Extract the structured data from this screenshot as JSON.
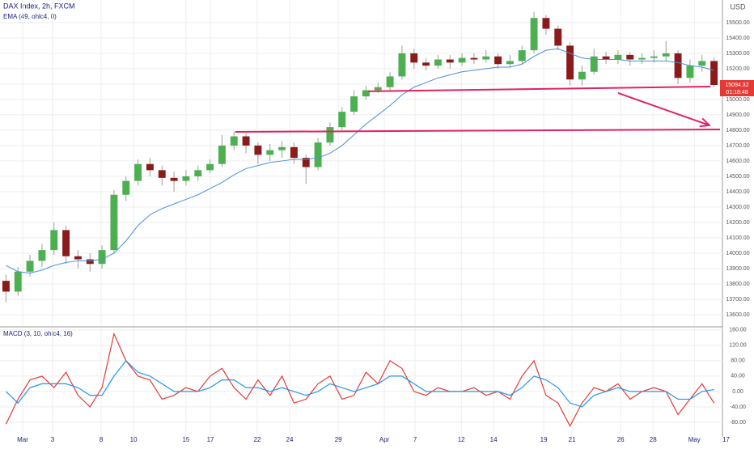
{
  "chart_data": {
    "type": "candlestick",
    "title": "DAX Index, 2h, FXCM",
    "currency": "USD",
    "indicator_label": "EMA (49, ohlc4, 0)",
    "up_color": "#4caf50",
    "down_color": "#8b1a1a",
    "wick_color": "#9e9e9e",
    "ema_color": "#4a90d9",
    "xlim": [
      -0.5,
      59.5
    ],
    "ylim": [
      13526,
      15647
    ],
    "xticks": [
      {
        "value": 1.39,
        "label": "Mar"
      },
      {
        "value": 3.88,
        "label": "3"
      },
      {
        "value": 7.93,
        "label": "8"
      },
      {
        "value": 10.63,
        "label": "10"
      },
      {
        "value": 15.0,
        "label": "15"
      },
      {
        "value": 17.03,
        "label": "17"
      },
      {
        "value": 20.94,
        "label": "22"
      },
      {
        "value": 23.64,
        "label": "24"
      },
      {
        "value": 27.69,
        "label": "29"
      },
      {
        "value": 31.53,
        "label": "Apr"
      },
      {
        "value": 34.09,
        "label": "7"
      },
      {
        "value": 37.94,
        "label": "12"
      },
      {
        "value": 40.63,
        "label": "14"
      },
      {
        "value": 44.81,
        "label": "19"
      },
      {
        "value": 47.17,
        "label": "21"
      },
      {
        "value": 51.22,
        "label": "26"
      },
      {
        "value": 53.92,
        "label": "28"
      },
      {
        "value": 57.36,
        "label": "May"
      },
      {
        "value": 60.0,
        "label": "17"
      }
    ],
    "yticks": [
      {
        "value": 13600,
        "label": "13600.00"
      },
      {
        "value": 13700,
        "label": "13700.00"
      },
      {
        "value": 13800,
        "label": "13800.00"
      },
      {
        "value": 13900,
        "label": "13900.00"
      },
      {
        "value": 14000,
        "label": "14000.00"
      },
      {
        "value": 14100,
        "label": "14100.00"
      },
      {
        "value": 14200,
        "label": "14200.00"
      },
      {
        "value": 14300,
        "label": "14300.00"
      },
      {
        "value": 14400,
        "label": "14400.00"
      },
      {
        "value": 14500,
        "label": "14500.00"
      },
      {
        "value": 14600,
        "label": "14600.00"
      },
      {
        "value": 14700,
        "label": "14700.00"
      },
      {
        "value": 14800,
        "label": "14800.00"
      },
      {
        "value": 14900,
        "label": "14900.00"
      },
      {
        "value": 15000,
        "label": "15000.00"
      },
      {
        "value": 15100,
        "label": "15100.00"
      },
      {
        "value": 15200,
        "label": "15200.00"
      },
      {
        "value": 15300,
        "label": "15300.00"
      },
      {
        "value": 15400,
        "label": "15400.00"
      },
      {
        "value": 15500,
        "label": "15500.00"
      }
    ],
    "grid": true,
    "open": [
      13820,
      13750,
      13880,
      13950,
      14020,
      14150,
      13980,
      13960,
      13930,
      14020,
      14380,
      14470,
      14580,
      14540,
      14490,
      14470,
      14500,
      14540,
      14580,
      14700,
      14760,
      14700,
      14640,
      14670,
      14690,
      14620,
      14560,
      14720,
      14820,
      14920,
      15020,
      15060,
      15080,
      15150,
      15300,
      15240,
      15220,
      15260,
      15240,
      15270,
      15260,
      15280,
      15230,
      15250,
      15320,
      15530,
      15460,
      15350,
      15130,
      15180,
      15280,
      15260,
      15290,
      15260,
      15270,
      15280,
      15300,
      15140,
      15220,
      15250
    ],
    "high": [
      13860,
      13910,
      13990,
      14060,
      14200,
      14180,
      14020,
      14000,
      14050,
      14410,
      14500,
      14610,
      14620,
      14570,
      14530,
      14540,
      14570,
      14610,
      14770,
      14790,
      14780,
      14720,
      14710,
      14730,
      14720,
      14640,
      14750,
      14850,
      14950,
      15060,
      15090,
      15110,
      15180,
      15350,
      15330,
      15270,
      15290,
      15290,
      15300,
      15300,
      15320,
      15300,
      15290,
      15350,
      15570,
      15550,
      15480,
      15370,
      15220,
      15330,
      15310,
      15320,
      15310,
      15300,
      15320,
      15380,
      15320,
      15260,
      15290,
      15270
    ],
    "low": [
      13680,
      13720,
      13850,
      13910,
      13990,
      13930,
      13900,
      13880,
      13900,
      14000,
      14340,
      14440,
      14500,
      14440,
      14400,
      14440,
      14470,
      14520,
      14560,
      14670,
      14650,
      14580,
      14600,
      14620,
      14580,
      14450,
      14540,
      14700,
      14800,
      14900,
      15000,
      15040,
      15060,
      15130,
      15200,
      15190,
      15200,
      15200,
      15220,
      15230,
      15240,
      15200,
      15210,
      15230,
      15300,
      15420,
      15320,
      15090,
      15090,
      15160,
      15230,
      15230,
      15220,
      15230,
      15240,
      15250,
      15100,
      15110,
      15180,
      15080
    ],
    "close": [
      13750,
      13880,
      13950,
      14020,
      14150,
      13980,
      13960,
      13930,
      14020,
      14380,
      14470,
      14580,
      14540,
      14490,
      14470,
      14500,
      14540,
      14580,
      14700,
      14760,
      14700,
      14640,
      14670,
      14690,
      14620,
      14560,
      14720,
      14820,
      14920,
      15020,
      15060,
      15080,
      15150,
      15300,
      15240,
      15220,
      15260,
      15240,
      15270,
      15260,
      15280,
      15230,
      15250,
      15320,
      15530,
      15460,
      15350,
      15130,
      15180,
      15280,
      15260,
      15290,
      15260,
      15270,
      15280,
      15300,
      15140,
      15220,
      15250,
      15094.32
    ],
    "ema": [
      13920,
      13880,
      13870,
      13890,
      13920,
      13940,
      13950,
      13950,
      13960,
      14000,
      14080,
      14180,
      14250,
      14290,
      14320,
      14350,
      14380,
      14420,
      14460,
      14510,
      14550,
      14570,
      14590,
      14600,
      14610,
      14610,
      14620,
      14650,
      14700,
      14770,
      14840,
      14900,
      14960,
      15030,
      15080,
      15110,
      15140,
      15160,
      15180,
      15190,
      15200,
      15210,
      15210,
      15230,
      15280,
      15320,
      15330,
      15300,
      15270,
      15260,
      15260,
      15260,
      15250,
      15250,
      15250,
      15250,
      15240,
      15220,
      15210,
      15190
    ],
    "last_price": {
      "value": 15094.32,
      "label": "15094.32"
    },
    "countdown": "01:18:48",
    "annotation_color": "#e0245e",
    "lines": [
      {
        "x": [
          30.2,
          58.7
        ],
        "y": [
          15053,
          15084
        ]
      },
      {
        "x": [
          19.1,
          59.5
        ],
        "y": [
          14789,
          14805
        ]
      }
    ],
    "arrow": {
      "x": [
        51.0,
        58.6
      ],
      "y": [
        15042,
        14832
      ]
    },
    "macd": {
      "label": "MACD (3, 10, ohlc4, 16)",
      "ylim": [
        -118,
        166
      ],
      "yticks": [
        {
          "value": 160,
          "label": "160.00"
        },
        {
          "value": 120,
          "label": "120.00"
        },
        {
          "value": 80,
          "label": "80.00"
        },
        {
          "value": 40,
          "label": "40.00"
        },
        {
          "value": 0,
          "label": "0.00"
        },
        {
          "value": -40,
          "label": "-40.00"
        },
        {
          "value": -80,
          "label": "-80.00"
        }
      ],
      "series": [
        {
          "color": "#e53935",
          "values": [
            -85,
            -20,
            30,
            40,
            10,
            50,
            -10,
            -40,
            10,
            150,
            80,
            40,
            30,
            -20,
            -10,
            10,
            0,
            40,
            60,
            10,
            -20,
            30,
            -10,
            40,
            -30,
            -20,
            20,
            40,
            -20,
            -10,
            50,
            20,
            80,
            60,
            0,
            -10,
            10,
            0,
            0,
            10,
            -10,
            0,
            -20,
            40,
            80,
            -10,
            -30,
            -90,
            -30,
            10,
            0,
            20,
            -20,
            0,
            10,
            0,
            -60,
            -20,
            20,
            -30
          ]
        },
        {
          "color": "#2196f3",
          "values": [
            0,
            -30,
            10,
            20,
            20,
            20,
            10,
            -10,
            -10,
            40,
            80,
            50,
            40,
            20,
            0,
            0,
            0,
            10,
            30,
            30,
            10,
            10,
            0,
            10,
            0,
            -10,
            0,
            20,
            10,
            0,
            10,
            20,
            40,
            40,
            20,
            0,
            0,
            0,
            0,
            0,
            0,
            0,
            -10,
            10,
            40,
            30,
            10,
            -30,
            -40,
            -10,
            0,
            10,
            0,
            0,
            0,
            0,
            -20,
            -20,
            0,
            5
          ]
        }
      ]
    }
  }
}
